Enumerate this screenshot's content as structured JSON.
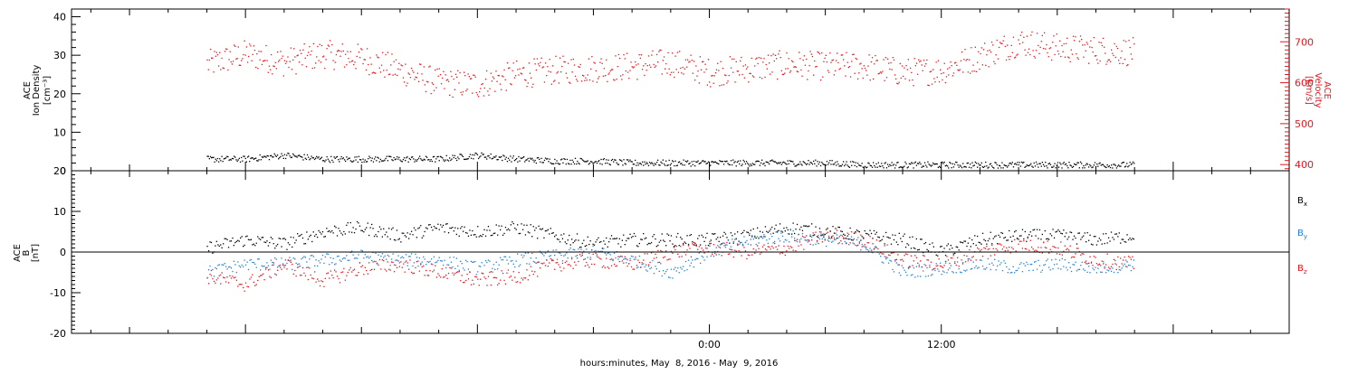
{
  "chart_data": [
    {
      "type": "scatter",
      "panel": "plasma",
      "ylabel_left": [
        "ACE",
        "Ion Density",
        "[cm⁻³]"
      ],
      "ylabel_right": [
        "ACE",
        "Velocity",
        "[km/s]"
      ],
      "ylim_left": [
        0,
        42
      ],
      "ylim_right": [
        385,
        780
      ],
      "yticks_left": [
        "0",
        "10",
        "20",
        "30",
        "40"
      ],
      "yticks_right": [
        "400",
        "500",
        "600",
        "700"
      ],
      "left_axis_color": "#000000",
      "right_axis_color": "#e8141c",
      "grid": false,
      "series": [
        {
          "name": "",
          "axis": "left",
          "color": "#000000",
          "x_hours": [
            -26,
            -24,
            -22,
            -20,
            -18,
            -16,
            -14,
            -12,
            -10,
            -8,
            -6,
            -4,
            -2,
            0,
            2,
            4,
            6,
            8,
            10,
            12,
            14,
            16,
            18,
            20,
            22
          ],
          "y": [
            3,
            3,
            4,
            3,
            3,
            3,
            3,
            4,
            3,
            2.5,
            2.5,
            2,
            2,
            2,
            2,
            2,
            2,
            1.5,
            1.5,
            1.5,
            1.5,
            1.5,
            1.5,
            1.5,
            1.5
          ]
        },
        {
          "name": "",
          "axis": "right",
          "color": "#e8141c",
          "x_hours": [
            -26,
            -24,
            -22,
            -20,
            -18,
            -16,
            -14,
            -12,
            -10,
            -8,
            -6,
            -4,
            -2,
            0,
            2,
            4,
            6,
            8,
            10,
            12,
            14,
            16,
            18,
            20,
            22
          ],
          "y": [
            645,
            670,
            650,
            670,
            660,
            630,
            600,
            595,
            620,
            630,
            635,
            640,
            650,
            625,
            635,
            645,
            640,
            640,
            625,
            630,
            665,
            700,
            685,
            680,
            675
          ]
        }
      ]
    },
    {
      "type": "scatter",
      "panel": "magnetic-field",
      "ylabel_left": [
        "ACE",
        "B",
        "[nT]"
      ],
      "ylim": [
        -20,
        20
      ],
      "yticks_left": [
        "-20",
        "-10",
        "0",
        "10",
        "20"
      ],
      "zero_line": true,
      "grid": false,
      "legend_position": "right",
      "series": [
        {
          "name": "Bx",
          "color": "#000000",
          "x_hours": [
            -26,
            -24,
            -22,
            -20,
            -18,
            -16,
            -14,
            -12,
            -10,
            -8,
            -6,
            -4,
            -2,
            0,
            2,
            4,
            6,
            8,
            10,
            12,
            14,
            16,
            18,
            20,
            22
          ],
          "y": [
            1,
            3,
            2,
            5,
            6,
            4,
            6,
            5,
            6,
            4,
            2,
            3,
            3,
            3,
            4,
            6,
            5,
            4,
            3,
            0,
            3,
            4,
            4,
            3,
            4
          ]
        },
        {
          "name": "By",
          "color": "#1e7fd6",
          "x_hours": [
            -26,
            -24,
            -22,
            -20,
            -18,
            -16,
            -14,
            -12,
            -10,
            -8,
            -6,
            -4,
            -2,
            0,
            2,
            4,
            6,
            8,
            10,
            12,
            14,
            16,
            18,
            20,
            22
          ],
          "y": [
            -5,
            -3,
            -3,
            -2,
            -1,
            -2,
            -2,
            -4,
            -2,
            -1,
            0,
            -2,
            -5,
            0,
            3,
            4,
            3,
            2,
            -5,
            -4,
            -3,
            -4,
            -3,
            -4,
            -3
          ]
        },
        {
          "name": "Bz",
          "color": "#e8141c",
          "x_hours": [
            -26,
            -24,
            -22,
            -20,
            -18,
            -16,
            -14,
            -12,
            -10,
            -8,
            -6,
            -4,
            -2,
            0,
            2,
            4,
            6,
            8,
            10,
            12,
            14,
            16,
            18,
            20,
            22
          ],
          "y": [
            -6,
            -8,
            -3,
            -7,
            -4,
            -3,
            -5,
            -7,
            -6,
            -3,
            -2,
            -3,
            0,
            1,
            0,
            1,
            4,
            3,
            -2,
            -3,
            0,
            2,
            1,
            -2,
            -3
          ]
        }
      ]
    }
  ],
  "x_axis": {
    "xlim_hours": [
      -33,
      30
    ],
    "tick_labels": [
      {
        "hour": 0,
        "label": "0:00"
      },
      {
        "hour": 12,
        "label": "12:00"
      }
    ],
    "xlabel": "hours:minutes, May  8, 2016 - May  9, 2016"
  },
  "legend": {
    "bx": {
      "base": "B",
      "sub": "x",
      "color": "#000000"
    },
    "by": {
      "base": "B",
      "sub": "y",
      "color": "#1e7fd6"
    },
    "bz": {
      "base": "B",
      "sub": "z",
      "color": "#e8141c"
    }
  }
}
